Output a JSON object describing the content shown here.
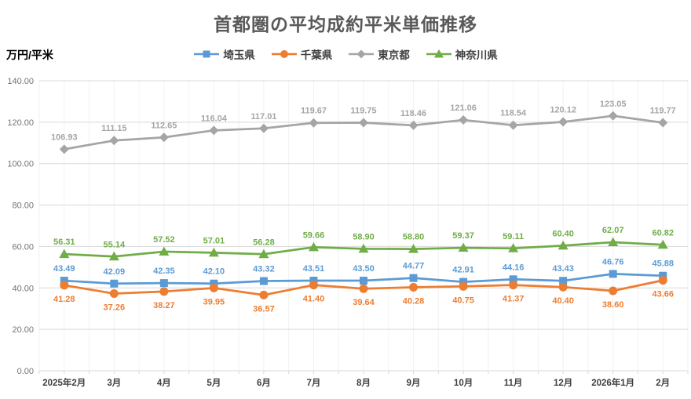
{
  "page": {
    "title": "首都圏の平均成約平米単価推移",
    "unit_label": "万円/平米"
  },
  "colors": {
    "title_text": "#595959",
    "axis_text": "#737373",
    "x_axis_text": "#404040",
    "gridline_h": "#D9D9D9",
    "gridline_v": "#F2F2F2",
    "axis_line": "#D9D9D9"
  },
  "chart_data": {
    "type": "line",
    "title": "首都圏の平均成約平米単価推移",
    "ylabel": "万円/平米",
    "xlabel": "",
    "ylim": [
      0,
      140
    ],
    "y_tick_step": 20,
    "y_tick_decimals": 2,
    "grid": true,
    "legend_position": "top",
    "categories": [
      "2025年2月",
      "3月",
      "4月",
      "5月",
      "6月",
      "7月",
      "8月",
      "9月",
      "10月",
      "11月",
      "12月",
      "2026年1月",
      "2月"
    ],
    "series": [
      {
        "name": "埼玉県",
        "marker": "square",
        "color": "#5B9BD5",
        "label_position": "above",
        "values": [
          43.49,
          42.09,
          42.35,
          42.1,
          43.32,
          43.51,
          43.5,
          44.77,
          42.91,
          44.16,
          43.43,
          46.76,
          45.88
        ]
      },
      {
        "name": "千葉県",
        "marker": "circle",
        "color": "#ED7D31",
        "label_position": "below",
        "values": [
          41.28,
          37.26,
          38.27,
          39.95,
          36.57,
          41.4,
          39.64,
          40.28,
          40.75,
          41.37,
          40.4,
          38.6,
          43.66
        ]
      },
      {
        "name": "東京都",
        "marker": "diamond",
        "color": "#A5A5A5",
        "label_position": "above",
        "values": [
          106.93,
          111.15,
          112.65,
          116.04,
          117.01,
          119.67,
          119.75,
          118.46,
          121.06,
          118.54,
          120.12,
          123.05,
          119.77
        ]
      },
      {
        "name": "神奈川県",
        "marker": "triangle",
        "color": "#70AD47",
        "label_position": "above",
        "values": [
          56.31,
          55.14,
          57.52,
          57.01,
          56.28,
          59.66,
          58.9,
          58.8,
          59.37,
          59.11,
          60.4,
          62.07,
          60.82
        ]
      }
    ]
  }
}
